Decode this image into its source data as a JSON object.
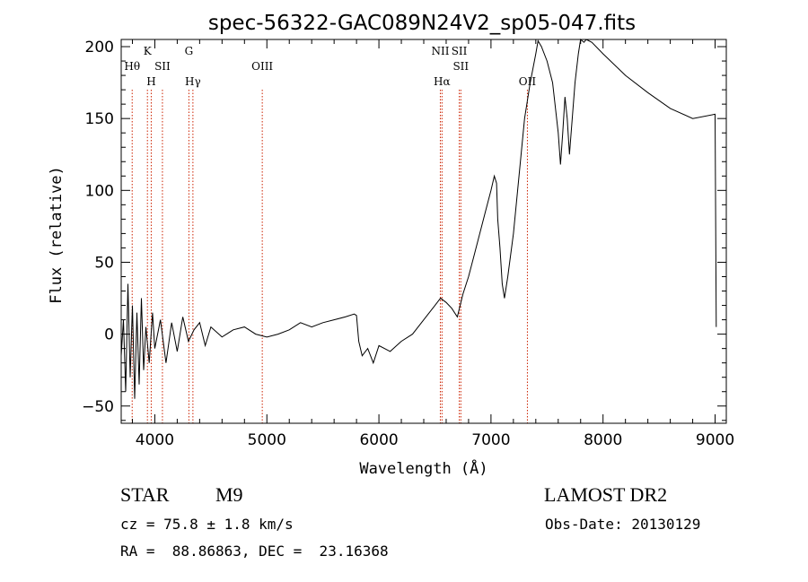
{
  "chart_data": {
    "type": "line",
    "title": "spec-56322-GAC089N24V2_sp05-047.fits",
    "xlabel": "Wavelength (Å)",
    "ylabel": "Flux (relative)",
    "xlim": [
      3700,
      9100
    ],
    "ylim": [
      -62,
      205
    ],
    "xticks": [
      4000,
      5000,
      6000,
      7000,
      8000,
      9000
    ],
    "yticks": [
      -50,
      0,
      50,
      100,
      150,
      200
    ],
    "series": [
      {
        "name": "flux",
        "x": [
          3700,
          3720,
          3740,
          3760,
          3780,
          3800,
          3820,
          3840,
          3860,
          3880,
          3900,
          3920,
          3950,
          3980,
          4000,
          4050,
          4100,
          4150,
          4200,
          4250,
          4300,
          4350,
          4400,
          4450,
          4500,
          4600,
          4700,
          4800,
          4900,
          5000,
          5100,
          5200,
          5300,
          5400,
          5500,
          5600,
          5700,
          5780,
          5800,
          5820,
          5850,
          5900,
          5950,
          6000,
          6100,
          6200,
          6300,
          6400,
          6500,
          6550,
          6600,
          6650,
          6700,
          6750,
          6800,
          6850,
          6900,
          6950,
          7000,
          7030,
          7050,
          7060,
          7080,
          7100,
          7120,
          7150,
          7200,
          7250,
          7300,
          7350,
          7400,
          7420,
          7450,
          7500,
          7550,
          7600,
          7620,
          7640,
          7660,
          7680,
          7700,
          7750,
          7780,
          7800,
          7830,
          7850,
          7900,
          8000,
          8200,
          8400,
          8600,
          8800,
          9000,
          9010
        ],
        "y": [
          -15,
          10,
          -40,
          35,
          -30,
          20,
          -45,
          15,
          -35,
          25,
          -25,
          5,
          -20,
          15,
          -10,
          10,
          -20,
          8,
          -12,
          12,
          -5,
          3,
          8,
          -8,
          5,
          -2,
          3,
          5,
          0,
          -2,
          0,
          3,
          8,
          5,
          8,
          10,
          12,
          14,
          13,
          -5,
          -15,
          -10,
          -20,
          -8,
          -12,
          -5,
          0,
          10,
          20,
          25,
          22,
          18,
          12,
          28,
          40,
          55,
          70,
          85,
          100,
          110,
          105,
          80,
          60,
          35,
          25,
          40,
          70,
          110,
          150,
          175,
          195,
          204,
          200,
          190,
          175,
          140,
          118,
          140,
          165,
          150,
          125,
          175,
          195,
          205,
          203,
          205,
          203,
          195,
          180,
          168,
          157,
          150,
          153,
          5
        ]
      }
    ],
    "spectral_lines": [
      {
        "label": "Hθ",
        "wavelength": 3798,
        "row": 1
      },
      {
        "label": "K",
        "wavelength": 3934,
        "row": 0
      },
      {
        "label": "H",
        "wavelength": 3968,
        "row": 2
      },
      {
        "label": "SII",
        "wavelength": 4068,
        "row": 1
      },
      {
        "label": "G",
        "wavelength": 4304,
        "row": 0
      },
      {
        "label": "Hγ",
        "wavelength": 4340,
        "row": 2
      },
      {
        "label": "OIII",
        "wavelength": 4959,
        "row": 1
      },
      {
        "label": "NII",
        "wavelength": 6548,
        "row": 0
      },
      {
        "label": "Hα",
        "wavelength": 6563,
        "row": 2
      },
      {
        "label": "SII",
        "wavelength": 6717,
        "row": 0
      },
      {
        "label": "SII",
        "wavelength": 6731,
        "row": 1
      },
      {
        "label": "OII",
        "wavelength": 7325,
        "row": 2
      }
    ]
  },
  "info": {
    "object_class": "STAR",
    "subclass": "M9",
    "survey": "LAMOST DR2",
    "cz": "cz = 75.8 ± 1.8 km/s",
    "obs_date": "Obs-Date: 20130129",
    "coords": "RA =  88.86863, DEC =  23.16368"
  },
  "colors": {
    "axes": "#000000",
    "spectrum": "#000000",
    "line_marker": "#cc2200"
  }
}
